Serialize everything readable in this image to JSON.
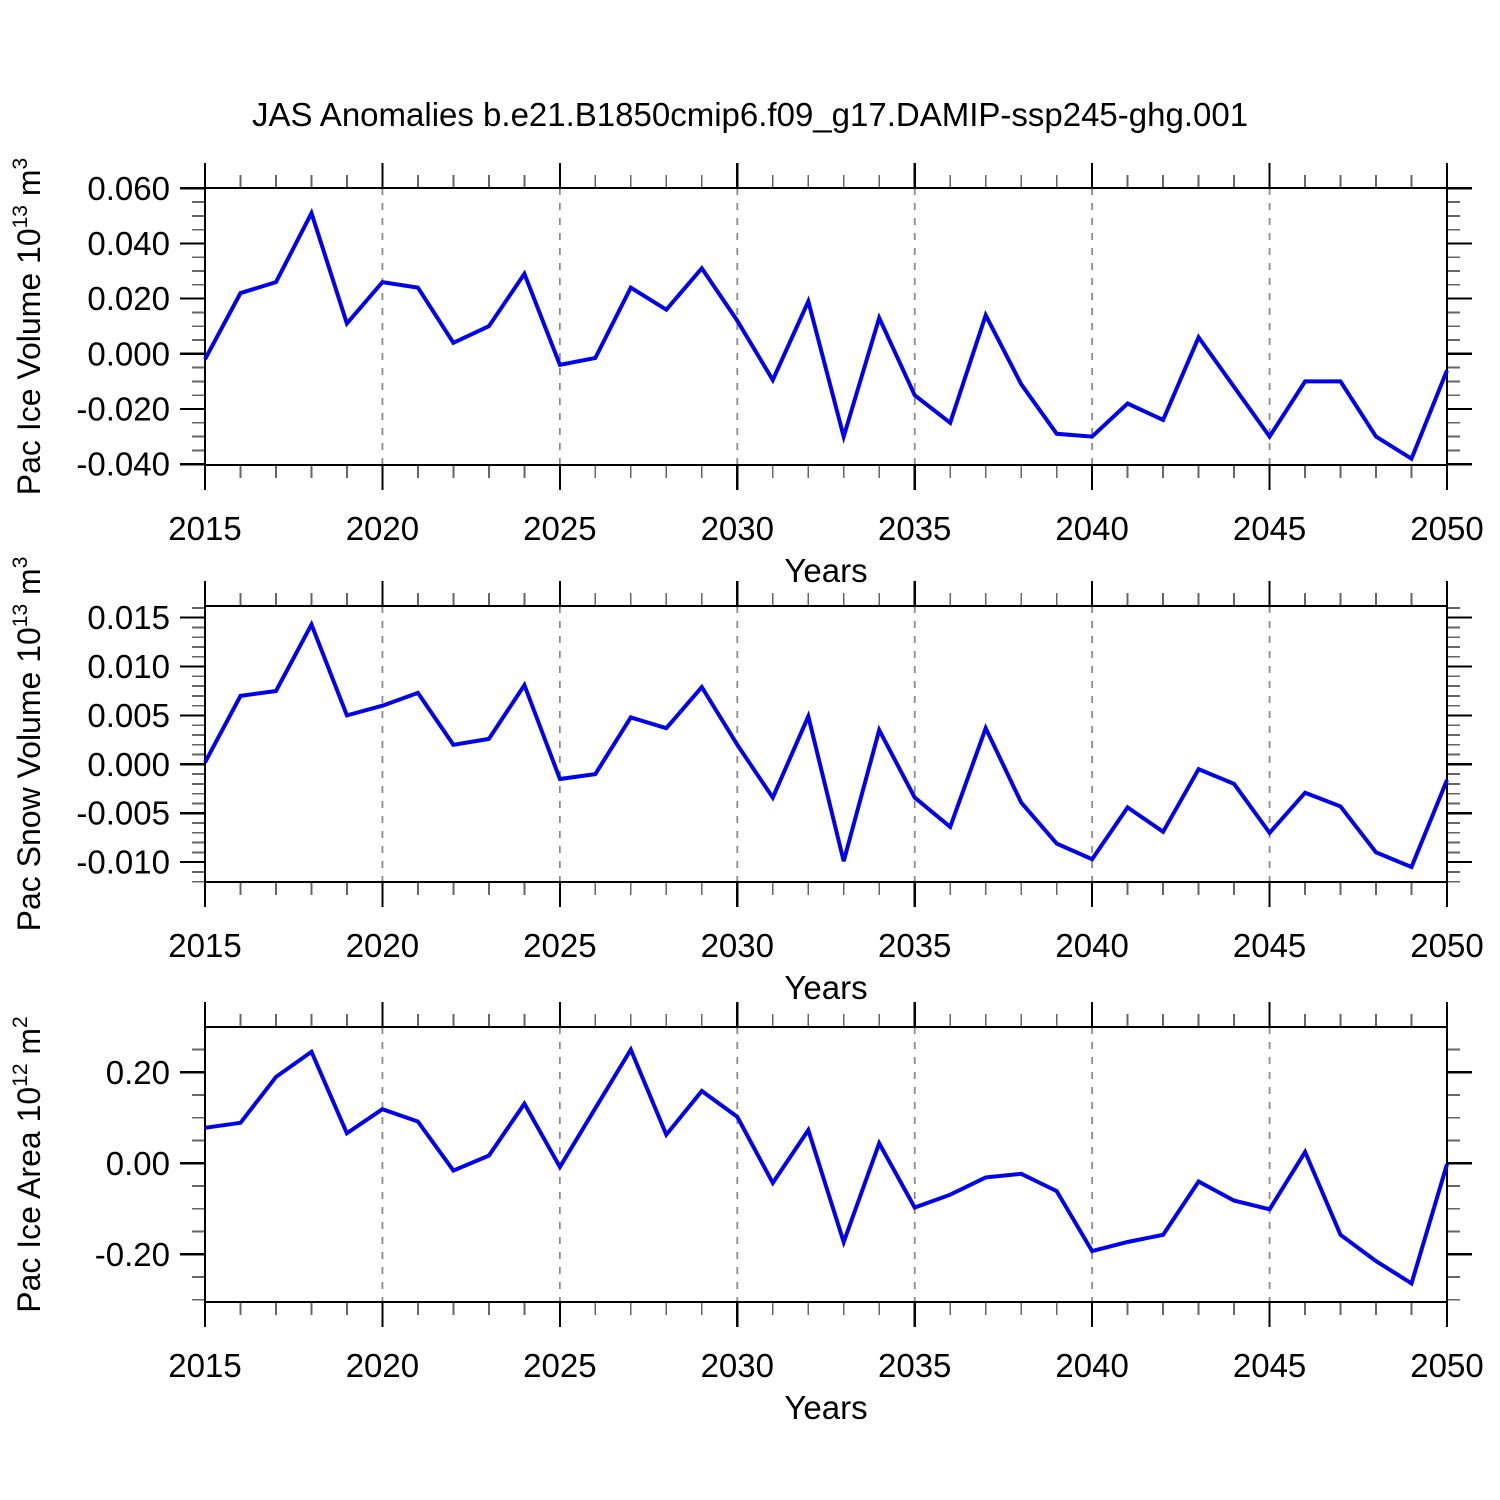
{
  "title": "JAS Anomalies b.e21.B1850cmip6.f09_g17.DAMIP-ssp245-ghg.001",
  "colors": {
    "line": "#0000EE",
    "grid": "#8c8c8c",
    "axis": "#000000",
    "minor_tick": "#666666",
    "text": "#000000",
    "background": "#ffffff"
  },
  "chart_data": [
    {
      "type": "line",
      "ylabel": "Pac Ice Volume 10^13 m^3",
      "ylabel_parts": [
        {
          "text": "Pac Ice Volume 10",
          "sup": false
        },
        {
          "text": "13",
          "sup": true
        },
        {
          "text": " m",
          "sup": false
        },
        {
          "text": "3",
          "sup": true
        }
      ],
      "xlabel": "Years",
      "x": [
        2015,
        2016,
        2017,
        2018,
        2019,
        2020,
        2021,
        2022,
        2023,
        2024,
        2025,
        2026,
        2027,
        2028,
        2029,
        2030,
        2031,
        2032,
        2033,
        2034,
        2035,
        2036,
        2037,
        2038,
        2039,
        2040,
        2041,
        2042,
        2043,
        2044,
        2045,
        2046,
        2047,
        2048,
        2049,
        2050
      ],
      "values": [
        -0.002,
        0.022,
        0.026,
        0.051,
        0.011,
        0.026,
        0.024,
        0.004,
        0.01,
        0.029,
        -0.004,
        -0.0015,
        0.024,
        0.016,
        0.031,
        0.012,
        -0.0095,
        0.019,
        -0.03,
        0.013,
        -0.015,
        -0.025,
        0.014,
        -0.011,
        -0.029,
        -0.03,
        -0.018,
        -0.024,
        0.006,
        -0.012,
        -0.03,
        -0.01,
        -0.01,
        -0.03,
        -0.038,
        -0.006
      ],
      "ylim": [
        -0.0403,
        0.0601
      ],
      "yticks": [
        {
          "v": 0.06,
          "label": "0.060"
        },
        {
          "v": 0.04,
          "label": "0.040"
        },
        {
          "v": 0.02,
          "label": "0.020"
        },
        {
          "v": 0.0,
          "label": "0.000"
        },
        {
          "v": -0.02,
          "label": "-0.020"
        },
        {
          "v": -0.04,
          "label": "-0.040"
        }
      ],
      "y_minor_step": 0.005,
      "x_major_ticks": [
        2015,
        2020,
        2025,
        2030,
        2035,
        2040,
        2045,
        2050
      ],
      "x_grid": [
        2020,
        2025,
        2030,
        2035,
        2040,
        2045
      ],
      "xlim": [
        2015,
        2050
      ]
    },
    {
      "type": "line",
      "ylabel": "Pac Snow Volume 10^13 m^3",
      "ylabel_parts": [
        {
          "text": "Pac Snow Volume 10",
          "sup": false
        },
        {
          "text": "13",
          "sup": true
        },
        {
          "text": " m",
          "sup": false
        },
        {
          "text": "3",
          "sup": true
        }
      ],
      "xlabel": "Years",
      "x": [
        2015,
        2016,
        2017,
        2018,
        2019,
        2020,
        2021,
        2022,
        2023,
        2024,
        2025,
        2026,
        2027,
        2028,
        2029,
        2030,
        2031,
        2032,
        2033,
        2034,
        2035,
        2036,
        2037,
        2038,
        2039,
        2040,
        2041,
        2042,
        2043,
        2044,
        2045,
        2046,
        2047,
        2048,
        2049,
        2050
      ],
      "values": [
        0.0002,
        0.007,
        0.0075,
        0.0143,
        0.005,
        0.006,
        0.0073,
        0.002,
        0.0026,
        0.0081,
        -0.0015,
        -0.001,
        0.0048,
        0.0037,
        0.0079,
        0.002,
        -0.0034,
        0.0049,
        -0.0099,
        0.0035,
        -0.0034,
        -0.0064,
        0.0037,
        -0.0039,
        -0.0081,
        -0.0097,
        -0.0044,
        -0.0069,
        -0.0005,
        -0.002,
        -0.007,
        -0.0029,
        -0.0043,
        -0.009,
        -0.0105,
        -0.0016
      ],
      "ylim": [
        -0.01203,
        0.01619
      ],
      "yticks": [
        {
          "v": 0.015,
          "label": "0.015"
        },
        {
          "v": 0.01,
          "label": "0.010"
        },
        {
          "v": 0.005,
          "label": "0.005"
        },
        {
          "v": 0.0,
          "label": "0.000"
        },
        {
          "v": -0.005,
          "label": "-0.005"
        },
        {
          "v": -0.01,
          "label": "-0.010"
        }
      ],
      "y_minor_step": 0.001,
      "x_major_ticks": [
        2015,
        2020,
        2025,
        2030,
        2035,
        2040,
        2045,
        2050
      ],
      "x_grid": [
        2020,
        2025,
        2030,
        2035,
        2040,
        2045
      ],
      "xlim": [
        2015,
        2050
      ]
    },
    {
      "type": "line",
      "ylabel": "Pac Ice Area 10^12 m^2",
      "ylabel_parts": [
        {
          "text": "Pac Ice Area 10",
          "sup": false
        },
        {
          "text": "12",
          "sup": true
        },
        {
          "text": " m",
          "sup": false
        },
        {
          "text": "2",
          "sup": true
        }
      ],
      "xlabel": "Years",
      "x": [
        2015,
        2016,
        2017,
        2018,
        2019,
        2020,
        2021,
        2022,
        2023,
        2024,
        2025,
        2026,
        2027,
        2028,
        2029,
        2030,
        2031,
        2032,
        2033,
        2034,
        2035,
        2036,
        2037,
        2038,
        2039,
        2040,
        2041,
        2042,
        2043,
        2044,
        2045,
        2046,
        2047,
        2048,
        2049,
        2050
      ],
      "values": [
        0.078,
        0.089,
        0.19,
        0.245,
        0.066,
        0.119,
        0.092,
        -0.016,
        0.017,
        0.131,
        -0.008,
        0.121,
        0.25,
        0.063,
        0.159,
        0.102,
        -0.043,
        0.073,
        -0.173,
        0.044,
        -0.097,
        -0.069,
        -0.031,
        -0.023,
        -0.061,
        -0.193,
        -0.173,
        -0.157,
        -0.04,
        -0.082,
        -0.101,
        0.025,
        -0.157,
        -0.215,
        -0.264,
        -0.002
      ],
      "ylim": [
        -0.3048,
        0.2996
      ],
      "yticks": [
        {
          "v": 0.2,
          "label": "0.20"
        },
        {
          "v": 0.0,
          "label": "0.00"
        },
        {
          "v": -0.2,
          "label": "-0.20"
        }
      ],
      "y_minor_step": 0.05,
      "x_major_ticks": [
        2015,
        2020,
        2025,
        2030,
        2035,
        2040,
        2045,
        2050
      ],
      "x_grid": [
        2020,
        2025,
        2030,
        2035,
        2040,
        2045
      ],
      "xlim": [
        2015,
        2050
      ]
    }
  ]
}
